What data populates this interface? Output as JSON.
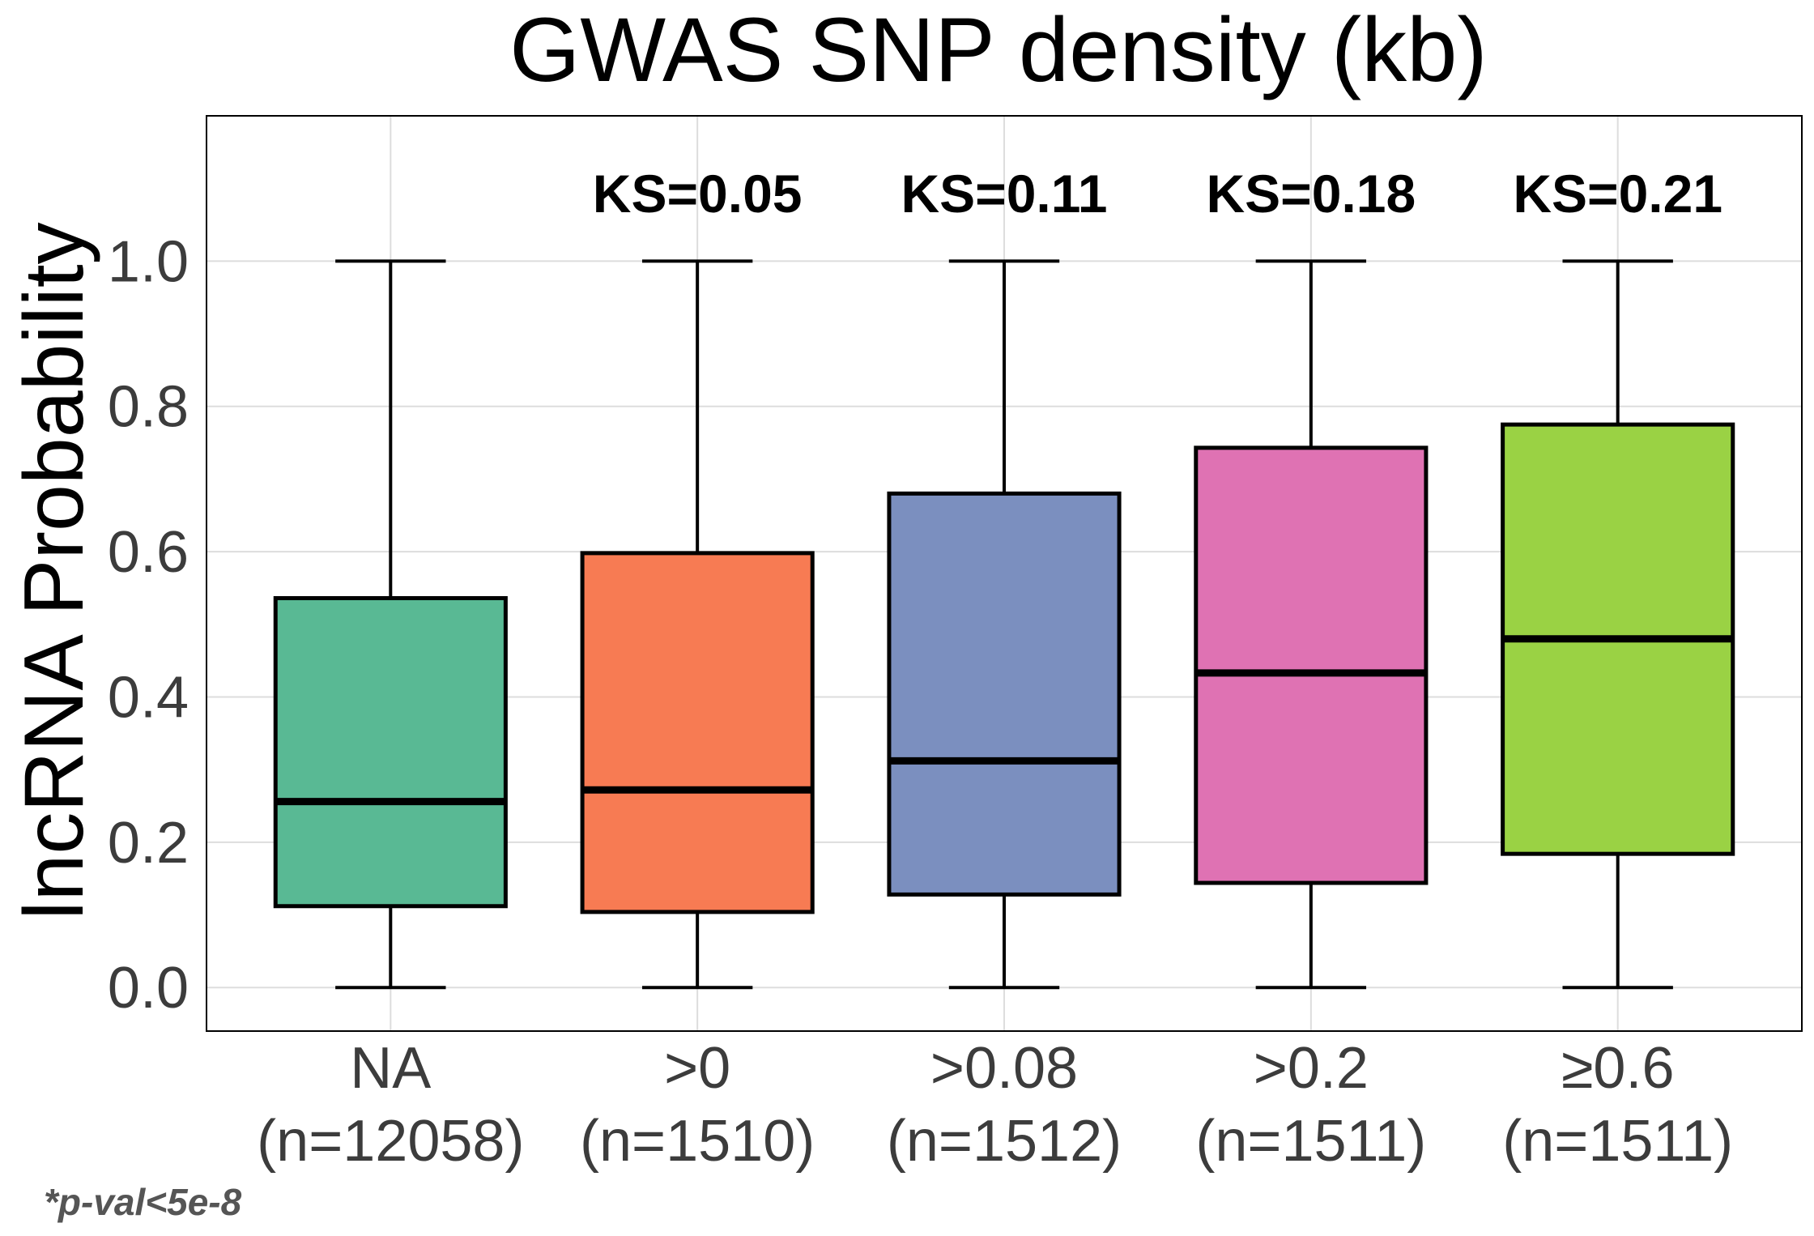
{
  "chart_data": {
    "type": "box",
    "title": "GWAS SNP density (kb)",
    "ylabel": "lncRNA Probability",
    "xlabel": "",
    "ylim": [
      -0.06,
      1.2
    ],
    "yticks": [
      "0.0",
      "0.2",
      "0.4",
      "0.6",
      "0.8",
      "1.0"
    ],
    "ytick_values": [
      0,
      0.2,
      0.4,
      0.6,
      0.8,
      1.0
    ],
    "grid": true,
    "footnote": "*p-val<5e-8",
    "categories": [
      {
        "label": "NA",
        "n_label": "(n=12058)",
        "ks": "",
        "min": 0.0,
        "q1": 0.112,
        "median": 0.256,
        "q3": 0.536,
        "max": 1.0,
        "color": "#59b994"
      },
      {
        "label": ">0",
        "n_label": "(n=1510)",
        "ks": "KS=0.05",
        "min": 0.0,
        "q1": 0.104,
        "median": 0.272,
        "q3": 0.598,
        "max": 1.0,
        "color": "#f77b53"
      },
      {
        "label": ">0.08",
        "n_label": "(n=1512)",
        "ks": "KS=0.11",
        "min": 0.0,
        "q1": 0.128,
        "median": 0.312,
        "q3": 0.68,
        "max": 1.0,
        "color": "#7b8fbf"
      },
      {
        "label": ">0.2",
        "n_label": "(n=1511)",
        "ks": "KS=0.18",
        "min": 0.0,
        "q1": 0.144,
        "median": 0.433,
        "q3": 0.743,
        "max": 1.0,
        "color": "#df72b3"
      },
      {
        "label": "≥0.6",
        "n_label": "(n=1511)",
        "ks": "KS=0.21",
        "min": 0.0,
        "q1": 0.184,
        "median": 0.48,
        "q3": 0.775,
        "max": 1.0,
        "color": "#9ad244"
      }
    ]
  }
}
